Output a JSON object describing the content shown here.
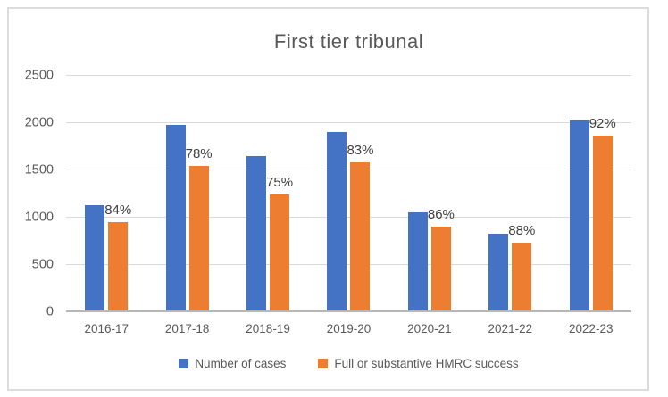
{
  "chart_data": {
    "type": "bar",
    "title": "First tier tribunal",
    "categories": [
      "2016-17",
      "2017-18",
      "2018-19",
      "2019-20",
      "2020-21",
      "2021-22",
      "2022-23"
    ],
    "series": [
      {
        "name": "Number of cases",
        "color": "#4472C4",
        "values": [
          1120,
          1970,
          1645,
          1900,
          1050,
          825,
          2020
        ]
      },
      {
        "name": "Full or substantive HMRC success",
        "color": "#ED7D31",
        "values": [
          940,
          1535,
          1235,
          1580,
          900,
          730,
          1860
        ],
        "data_labels": [
          "84%",
          "78%",
          "75%",
          "83%",
          "86%",
          "88%",
          "92%"
        ]
      }
    ],
    "xlabel": "",
    "ylabel": "",
    "ylim": [
      0,
      2500
    ],
    "y_ticks": [
      0,
      500,
      1000,
      1500,
      2000,
      2500
    ],
    "grid": true,
    "legend_position": "bottom",
    "colors": {
      "gridline": "#D9D9D9",
      "axis_line": "#B7B7B7",
      "axis_text": "#595959",
      "title_text": "#595959",
      "data_label_text": "#404040",
      "frame_border": "#DCDCDC"
    }
  }
}
